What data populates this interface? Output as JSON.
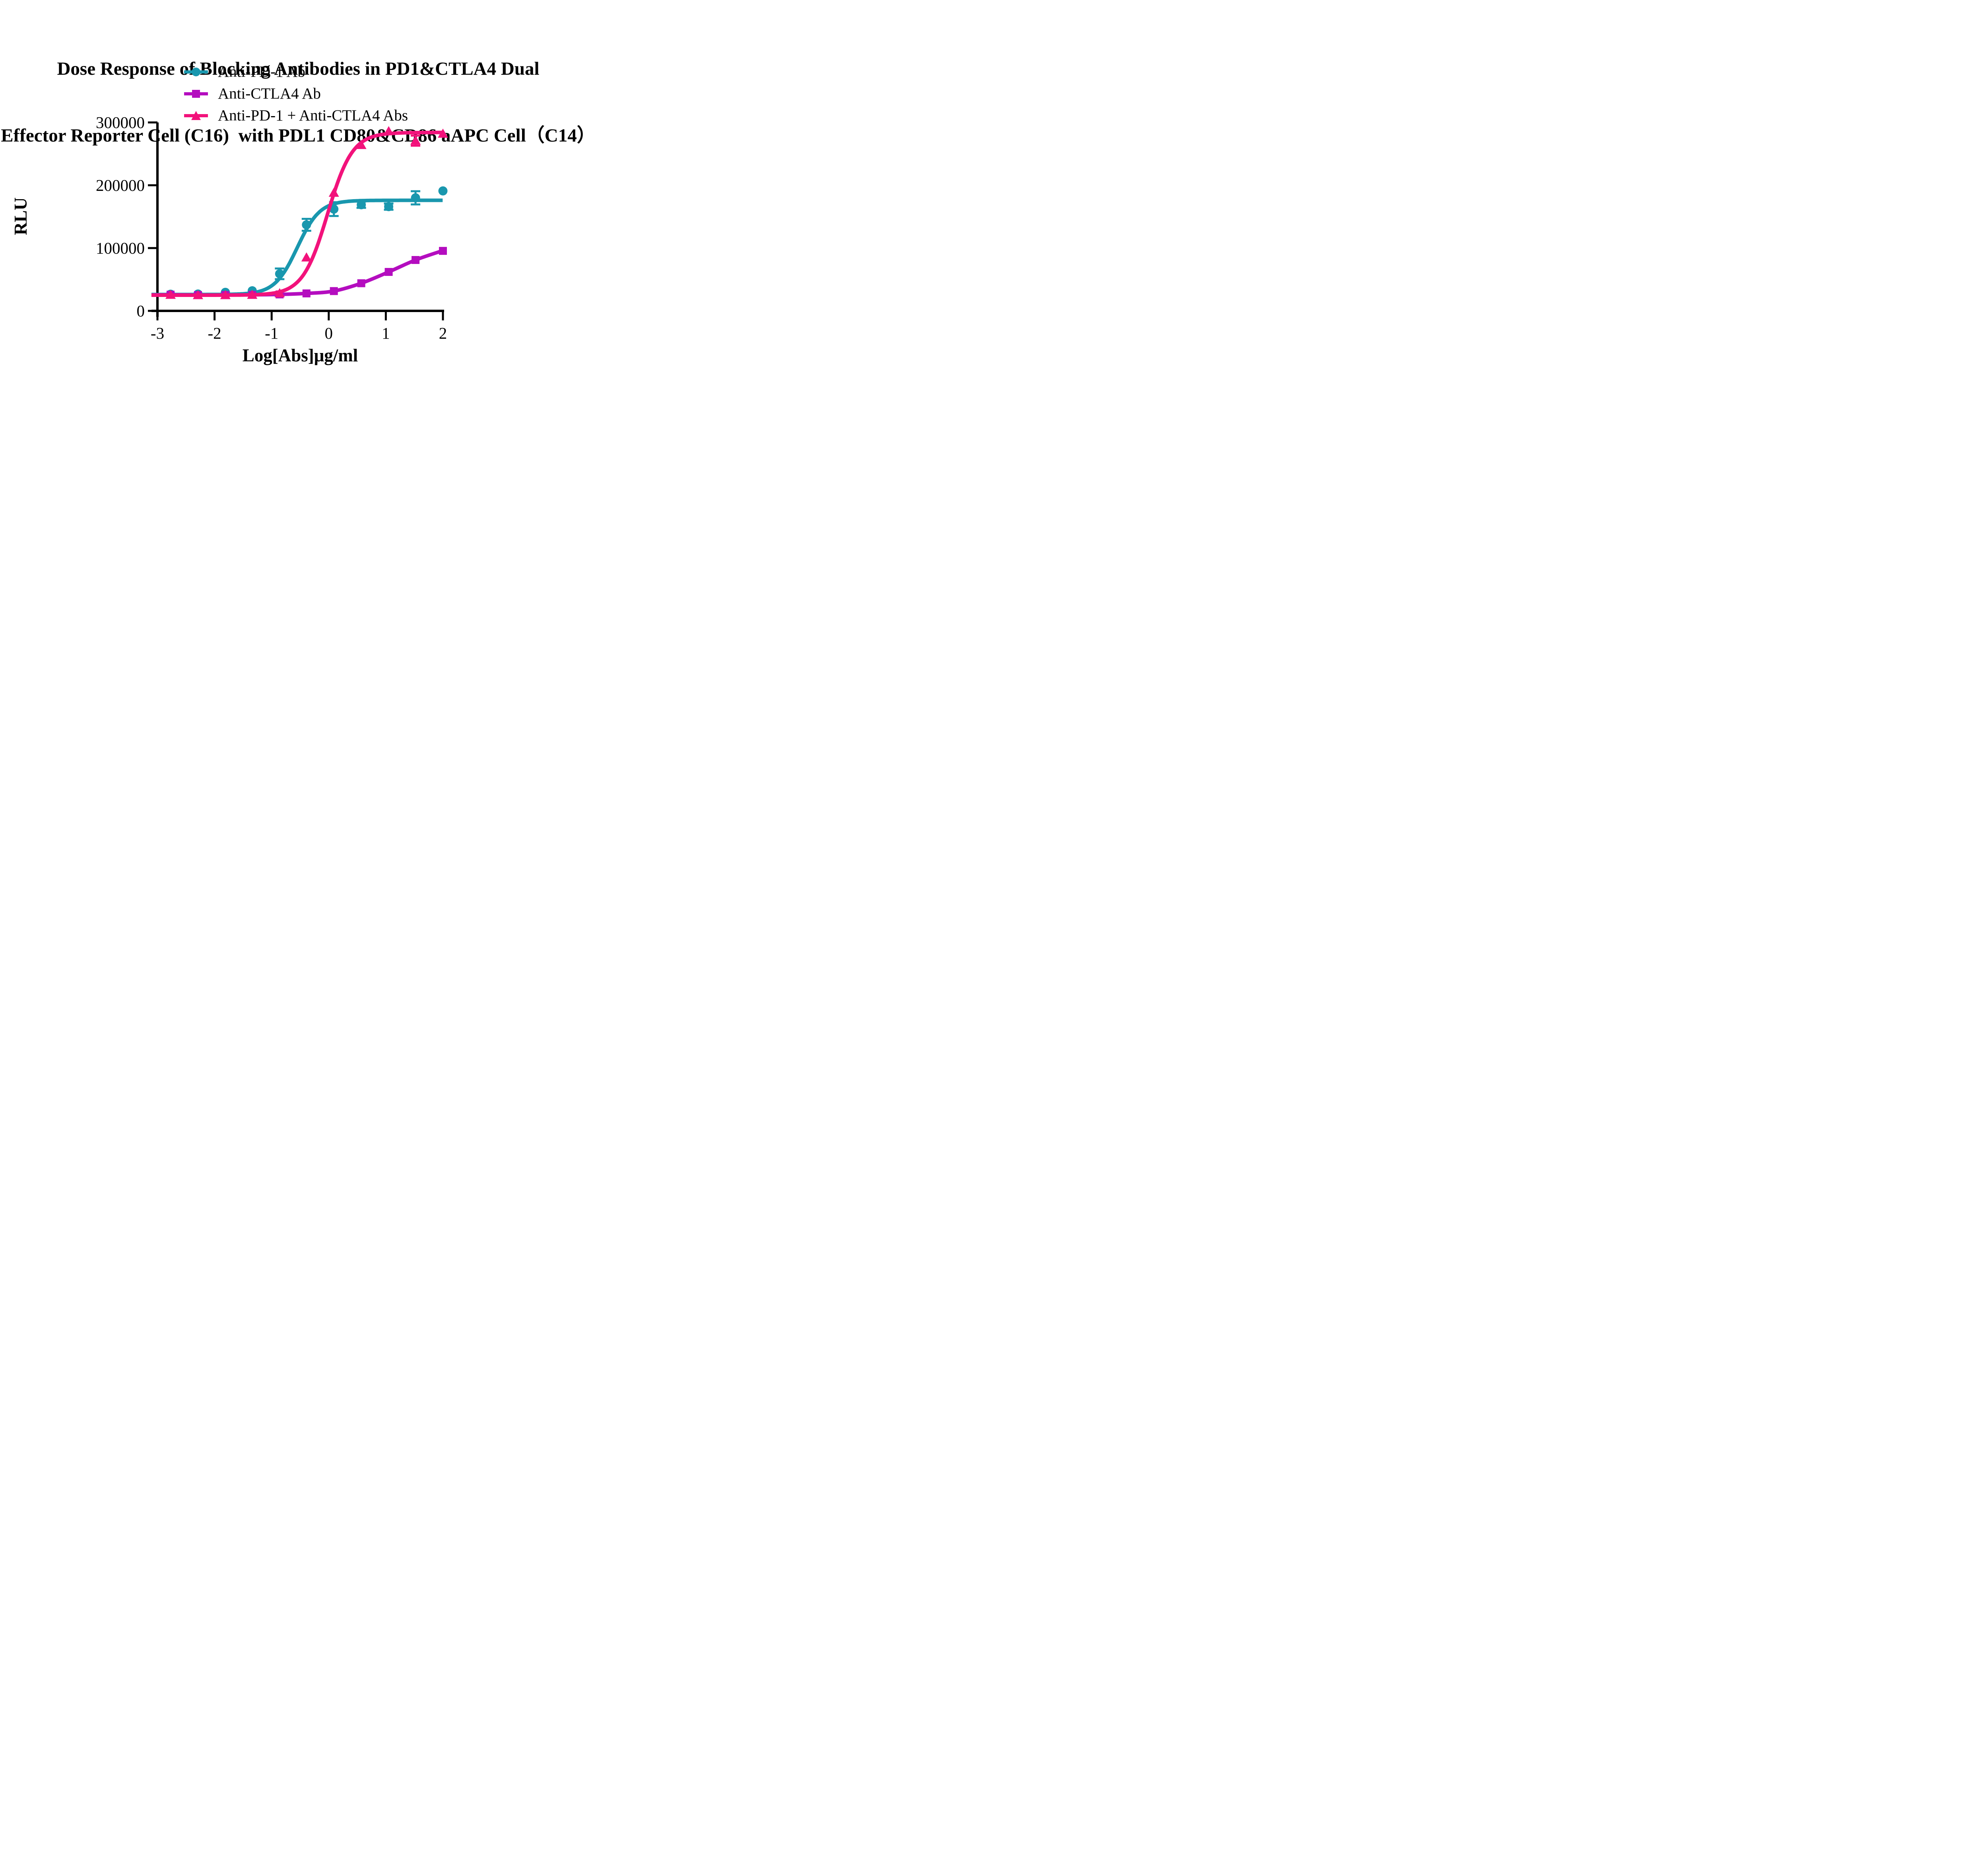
{
  "title": {
    "line1": "Dose Response of Blocking Antibodies in PD1&CTLA4 Dual",
    "line2": "Effector Reporter Cell (C16)  with PDL1 CD80&CD86 aAPC Cell（C14）"
  },
  "legend": [
    {
      "label": "Anti-PD-1 Ab",
      "marker": "circle",
      "color": "#1997AE"
    },
    {
      "label": "Anti-CTLA4 Ab",
      "marker": "square",
      "color": "#B40DBF"
    },
    {
      "label": "Anti-PD-1 + Anti-CTLA4 Abs",
      "marker": "triangle",
      "color": "#F2127B"
    }
  ],
  "chart_data": {
    "type": "line",
    "title": "Dose Response of Blocking Antibodies in PD1&CTLA4 Dual Effector Reporter Cell (C16) with PDL1 CD80&CD86 aAPC Cell（C14）",
    "xlabel": "Log[Abs]μg/ml",
    "ylabel": "RLU",
    "xlim": [
      -3,
      2
    ],
    "ylim": [
      0,
      300000
    ],
    "x_ticks": [
      -3,
      -2,
      -1,
      0,
      1,
      2
    ],
    "y_ticks": [
      0,
      100000,
      200000,
      300000
    ],
    "grid": false,
    "legend_position": "top-left",
    "x": [
      -2.77,
      -2.29,
      -1.81,
      -1.34,
      -0.86,
      -0.39,
      0.09,
      0.57,
      1.05,
      1.52,
      2.0
    ],
    "series": [
      {
        "name": "Anti-PD-1 Ab",
        "color": "#1997AE",
        "marker": "circle",
        "values": [
          26500,
          26800,
          29500,
          32000,
          59000,
          137000,
          162000,
          169000,
          166000,
          180000,
          191000
        ],
        "errors": [
          0,
          0,
          0,
          0,
          8500,
          9500,
          11000,
          5000,
          5000,
          10500,
          0
        ],
        "fit": {
          "type": "logistic",
          "bottom": 26000,
          "top": 176000,
          "logEC50": -0.55,
          "hill": 2.2
        }
      },
      {
        "name": "Anti-CTLA4 Ab",
        "color": "#B40DBF",
        "marker": "square",
        "values": [
          25800,
          25200,
          25200,
          25500,
          26200,
          27800,
          31500,
          44000,
          62000,
          81000,
          95500
        ],
        "errors": [
          0,
          0,
          0,
          0,
          0,
          0,
          0,
          0,
          0,
          0,
          0
        ],
        "fit": {
          "type": "spline",
          "points": [
            [
              -3.1,
              25300
            ],
            [
              -2.77,
              25600
            ],
            [
              -2.29,
              25200
            ],
            [
              -1.81,
              25200
            ],
            [
              -1.34,
              25600
            ],
            [
              -0.86,
              26200
            ],
            [
              -0.39,
              27800
            ],
            [
              0.09,
              31500
            ],
            [
              0.57,
              44000
            ],
            [
              1.05,
              62000
            ],
            [
              1.52,
              81000
            ],
            [
              2.0,
              96000
            ]
          ]
        }
      },
      {
        "name": "Anti-PD-1 + Anti-CTLA4 Abs",
        "color": "#F2127B",
        "marker": "triangle",
        "values": [
          25500,
          25000,
          25000,
          25500,
          28000,
          85000,
          188000,
          264000,
          286000,
          271000,
          282000
        ],
        "errors": [
          0,
          0,
          0,
          0,
          0,
          0,
          0,
          0,
          0,
          8000,
          0
        ],
        "fit": {
          "type": "logistic",
          "bottom": 25000,
          "top": 284000,
          "logEC50": -0.02,
          "hill": 2.0
        }
      }
    ]
  }
}
